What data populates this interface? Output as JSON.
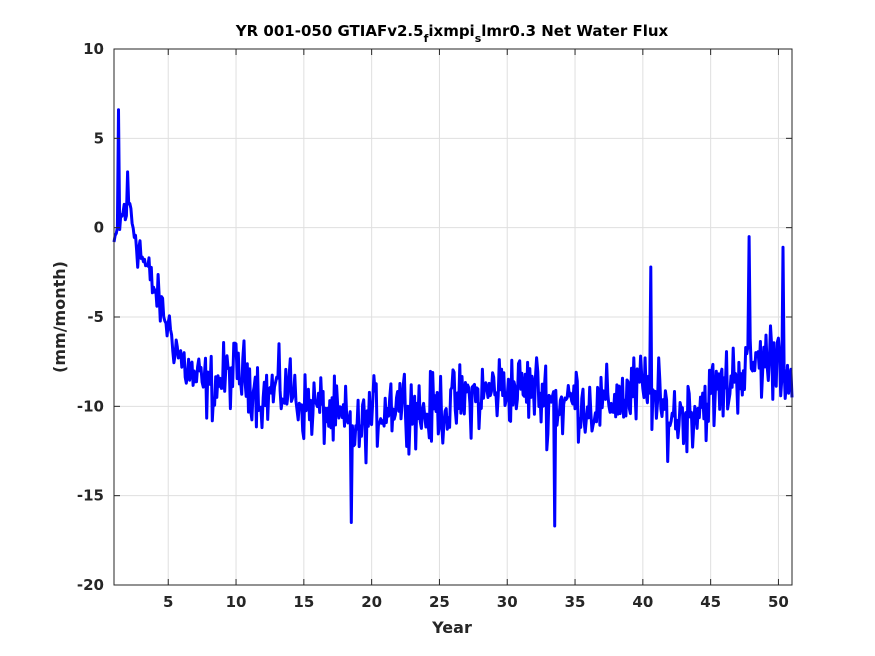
{
  "chart_data": {
    "type": "line",
    "title": {
      "main": "YR 001-050 GTIAFv2.5",
      "sub1": "f",
      "mid": "ixmpi",
      "sub2": "s",
      "end": "lmr0.3 Net Water Flux"
    },
    "xlabel": "Year",
    "ylabel": "(mm/month)",
    "xlim": [
      1,
      51
    ],
    "ylim": [
      -20,
      10
    ],
    "xticks": [
      5,
      10,
      15,
      20,
      25,
      30,
      35,
      40,
      45,
      50
    ],
    "yticks": [
      -20,
      -15,
      -10,
      -5,
      0,
      5,
      10
    ],
    "grid": true,
    "line_color": "#0000ff",
    "series": [
      {
        "x": [
          1,
          2,
          3,
          4,
          5,
          6,
          7,
          8,
          9,
          10,
          11,
          12,
          13,
          14,
          15,
          16,
          17,
          18,
          19,
          20,
          21,
          22,
          23,
          24,
          25,
          26,
          27,
          28,
          29,
          30,
          31,
          32,
          33,
          34,
          35,
          36,
          37,
          38,
          39,
          40,
          41,
          42,
          43,
          44,
          45,
          46,
          47,
          48,
          49,
          50,
          51
        ],
        "values": [
          -0.8,
          1.5,
          -1.5,
          -3.5,
          -5.5,
          -7.5,
          -8.5,
          -9.0,
          -8.5,
          -8.0,
          -8.5,
          -9.5,
          -9.0,
          -9.0,
          -10.0,
          -10.0,
          -10.5,
          -11.0,
          -11.5,
          -10.5,
          -10.0,
          -9.5,
          -10.0,
          -10.5,
          -10.0,
          -10.0,
          -9.5,
          -9.5,
          -9.0,
          -9.0,
          -9.0,
          -9.0,
          -9.5,
          -10.0,
          -9.5,
          -10.0,
          -10.0,
          -9.5,
          -9.5,
          -9.0,
          -10.0,
          -10.5,
          -10.5,
          -10.0,
          -9.5,
          -9.0,
          -8.0,
          -7.5,
          -7.5,
          -7.0,
          -9.5
        ],
        "amplitude": [
          0,
          3.5,
          2.0,
          1.8,
          2.0,
          2.2,
          2.5,
          2.8,
          2.8,
          2.8,
          2.8,
          2.8,
          2.8,
          2.8,
          2.8,
          2.8,
          2.8,
          3.2,
          2.8,
          2.8,
          3.0,
          2.8,
          3.0,
          3.0,
          3.0,
          3.0,
          3.0,
          3.0,
          3.0,
          3.0,
          3.0,
          3.0,
          3.5,
          3.2,
          3.0,
          2.8,
          2.8,
          2.8,
          3.2,
          3.5,
          3.5,
          3.0,
          3.0,
          3.2,
          3.2,
          3.2,
          3.5,
          3.2,
          3.2,
          3.5,
          2.0
        ],
        "extremes": [
          {
            "x": 1.3,
            "y": 6.6
          },
          {
            "x": 18.5,
            "y": -16.5
          },
          {
            "x": 33.5,
            "y": -16.7
          },
          {
            "x": 47.8,
            "y": -0.5
          },
          {
            "x": 40.6,
            "y": -2.2
          },
          {
            "x": 50.3,
            "y": -1.1
          }
        ]
      }
    ]
  }
}
